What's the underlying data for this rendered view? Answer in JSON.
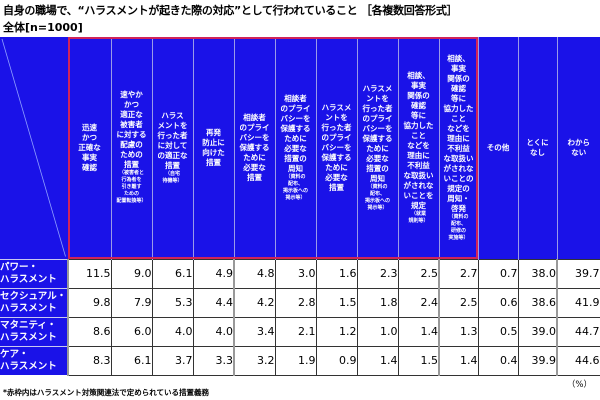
{
  "title": "自身の職場で、“ハラスメントが起きた際の対応”として行われていること ［各複数回答形式］",
  "subtitle": "全体[n=1000]",
  "columns": [
    {
      "label": "迅速かつ正確な事実確認",
      "lines": [
        "迅速",
        "かつ",
        "正確な",
        "事実",
        "確認"
      ],
      "note": []
    },
    {
      "label": "速やかかつ適正な被害者に対する配慮のための措置",
      "lines": [
        "速やか",
        "かつ",
        "適正な",
        "被害者",
        "に対する",
        "配慮の",
        "ための",
        "措置"
      ],
      "note": [
        "（被害者と",
        "行為者を",
        "引き離す",
        "ための",
        "配置転換等）"
      ]
    },
    {
      "label": "ハラスメントを行った者に対しての適正な措置",
      "lines": [
        "ハラス",
        "メントを",
        "行った者",
        "に対して",
        "の適正な",
        "措置"
      ],
      "note": [
        "（自宅",
        "待機等）"
      ]
    },
    {
      "label": "再発防止に向けた措置",
      "lines": [
        "再発",
        "防止に",
        "向けた",
        "措置"
      ],
      "note": []
    },
    {
      "label": "相談者のプライバシーを保護するために必要な措置",
      "lines": [
        "相談者",
        "のプライ",
        "バシーを",
        "保護する",
        "ために",
        "必要な",
        "措置"
      ],
      "note": []
    },
    {
      "label": "相談者のプライバシーを保護するために必要な措置の周知",
      "lines": [
        "相談者",
        "のプライ",
        "バシーを",
        "保護する",
        "ために",
        "必要な",
        "措置の",
        "周知"
      ],
      "note": [
        "（資料の",
        "配布、",
        "掲示板への",
        "掲示等）"
      ]
    },
    {
      "label": "ハラスメントを行った者のプライバシーを保護するために必要な措置",
      "lines": [
        "ハラスメ",
        "ントを",
        "行った者",
        "のプライ",
        "バシーを",
        "保護する",
        "ために",
        "必要な",
        "措置"
      ],
      "note": []
    },
    {
      "label": "ハラスメントを行った者のプライバシーを保護するために必要な措置の周知",
      "lines": [
        "ハラスメ",
        "ントを",
        "行った者",
        "のプライ",
        "バシーを",
        "保護する",
        "ために",
        "必要な",
        "措置の",
        "周知"
      ],
      "note": [
        "（資料の",
        "配布、",
        "掲示板への",
        "掲示等）"
      ]
    },
    {
      "label": "相談、事実関係の確認等に協力したことなどを理由に不利益な取扱いがされないことを規定",
      "lines": [
        "相談、",
        "事実",
        "関係の",
        "確認",
        "等に",
        "協力した",
        "こと",
        "などを",
        "理由に",
        "不利益",
        "な取扱い",
        "がされな",
        "いことを",
        "規定"
      ],
      "note": [
        "（就業",
        "規則等）"
      ]
    },
    {
      "label": "相談、事実関係の確認等に協力したことなどを理由に不利益な取扱いがされないことの規定の周知・啓発",
      "lines": [
        "相談、",
        "事実",
        "関係の",
        "確認",
        "等に",
        "協力した",
        "こと",
        "などを",
        "理由に",
        "不利益",
        "な取扱い",
        "がされな",
        "いことの",
        "規定の",
        "周知・",
        "啓発"
      ],
      "note": [
        "（資料の",
        "配布、",
        "研修の",
        "実施等）"
      ]
    },
    {
      "label": "その他",
      "lines": [
        "その他"
      ],
      "note": []
    },
    {
      "label": "とくになし",
      "lines": [
        "とくに",
        "なし"
      ],
      "note": []
    },
    {
      "label": "わからない",
      "lines": [
        "わから",
        "ない"
      ],
      "note": []
    }
  ],
  "rows": [
    {
      "label": "パワー・ハラスメント",
      "lines": [
        "パワー・",
        "ハラスメント"
      ],
      "values": [
        "11.5",
        "9.0",
        "6.1",
        "4.9",
        "4.8",
        "3.0",
        "1.6",
        "2.3",
        "2.5",
        "2.7",
        "0.7",
        "38.0",
        "39.7"
      ]
    },
    {
      "label": "セクシュアル・ハラスメント",
      "lines": [
        "セクシュアル・",
        "ハラスメント"
      ],
      "values": [
        "9.8",
        "7.9",
        "5.3",
        "4.4",
        "4.2",
        "2.8",
        "1.5",
        "1.8",
        "2.4",
        "2.5",
        "0.6",
        "38.6",
        "41.9"
      ]
    },
    {
      "label": "マタニティ・ハラスメント",
      "lines": [
        "マタニティ・",
        "ハラスメント"
      ],
      "values": [
        "8.6",
        "6.0",
        "4.0",
        "4.0",
        "3.4",
        "2.1",
        "1.2",
        "1.0",
        "1.4",
        "1.3",
        "0.5",
        "39.0",
        "44.7"
      ]
    },
    {
      "label": "ケア・ハラスメント",
      "lines": [
        "ケア・",
        "ハラスメント"
      ],
      "values": [
        "8.3",
        "6.1",
        "3.7",
        "3.3",
        "3.2",
        "1.9",
        "0.9",
        "1.4",
        "1.5",
        "1.4",
        "0.4",
        "39.9",
        "44.6"
      ]
    }
  ],
  "footnote": "*赤枠内はハラスメント対策関連法で定められている措置義務",
  "unit": "（%）",
  "colors": {
    "header_bg": "#1a12e8",
    "highlight_border": "#d0245a"
  },
  "chart_data": {
    "type": "table",
    "title": "自身の職場で、“ハラスメントが起きた際の対応”として行われていること ［各複数回答形式］",
    "subtitle": "全体[n=1000]",
    "unit": "%",
    "categories": [
      "迅速かつ正確な事実確認",
      "速やかかつ適正な被害者に対する配慮のための措置（被害者と行為者を引き離すための配置転換等）",
      "ハラスメントを行った者に対しての適正な措置（自宅待機等）",
      "再発防止に向けた措置",
      "相談者のプライバシーを保護するために必要な措置",
      "相談者のプライバシーを保護するために必要な措置の周知（資料の配布、掲示板への掲示等）",
      "ハラスメントを行った者のプライバシーを保護するために必要な措置",
      "ハラスメントを行った者のプライバシーを保護するために必要な措置の周知（資料の配布、掲示板への掲示等）",
      "相談、事実関係の確認等に協力したことなどを理由に不利益な取扱いがされないことを規定（就業規則等）",
      "相談、事実関係の確認等に協力したことなどを理由に不利益な取扱いがされないことの規定の周知・啓発（資料の配布、研修の実施等）",
      "その他",
      "とくになし",
      "わからない"
    ],
    "series": [
      {
        "name": "パワー・ハラスメント",
        "values": [
          11.5,
          9.0,
          6.1,
          4.9,
          4.8,
          3.0,
          1.6,
          2.3,
          2.5,
          2.7,
          0.7,
          38.0,
          39.7
        ]
      },
      {
        "name": "セクシュアル・ハラスメント",
        "values": [
          9.8,
          7.9,
          5.3,
          4.4,
          4.2,
          2.8,
          1.5,
          1.8,
          2.4,
          2.5,
          0.6,
          38.6,
          41.9
        ]
      },
      {
        "name": "マタニティ・ハラスメント",
        "values": [
          8.6,
          6.0,
          4.0,
          4.0,
          3.4,
          2.1,
          1.2,
          1.0,
          1.4,
          1.3,
          0.5,
          39.0,
          44.7
        ]
      },
      {
        "name": "ケア・ハラスメント",
        "values": [
          8.3,
          6.1,
          3.7,
          3.3,
          3.2,
          1.9,
          0.9,
          1.4,
          1.5,
          1.4,
          0.4,
          39.9,
          44.6
        ]
      }
    ],
    "annotations": [
      "*赤枠内はハラスメント対策関連法で定められている措置義務"
    ],
    "highlighted_columns": [
      0,
      1,
      2,
      3,
      4,
      5,
      6,
      7,
      8,
      9
    ]
  }
}
